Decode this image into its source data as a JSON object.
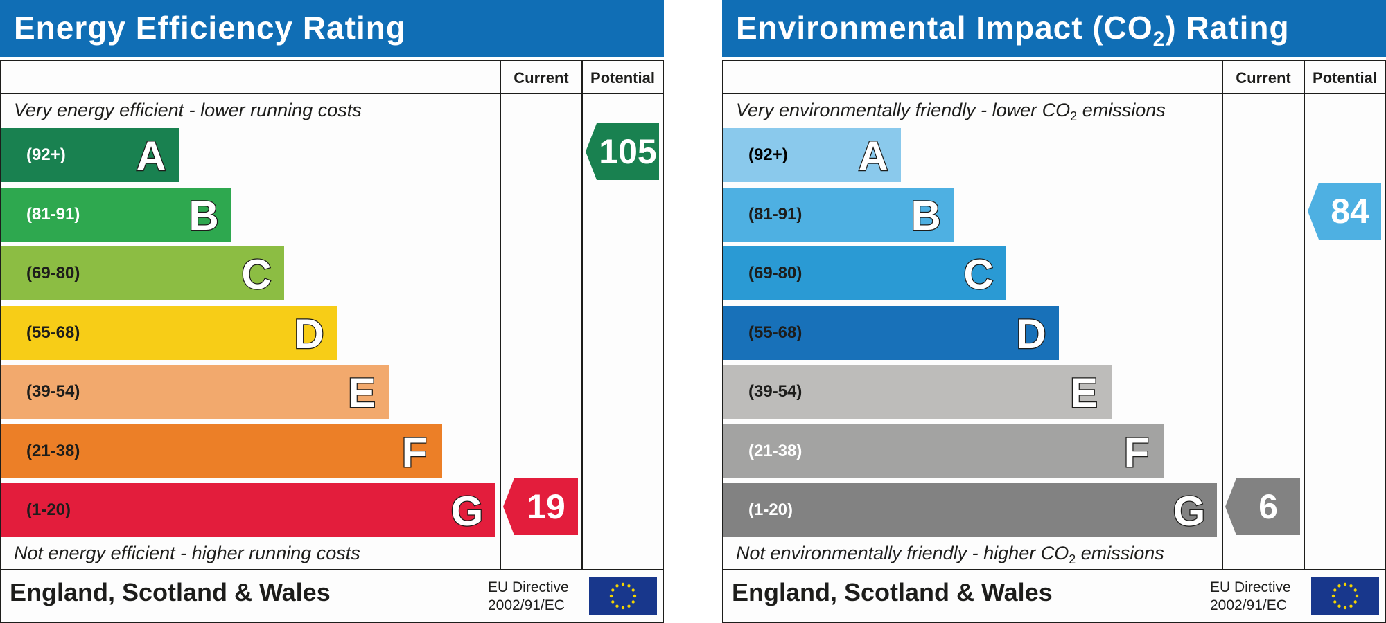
{
  "panels": [
    {
      "id": "eer",
      "title_main": "Energy Efficiency Rating",
      "title_sub": "",
      "title_tail": "",
      "col_current": "Current",
      "col_potential": "Potential",
      "top_caption": "Very energy efficient - lower running costs",
      "top_caption_sub": "",
      "top_caption_tail": "",
      "bottom_caption": "Not energy efficient - higher running costs",
      "bottom_caption_sub": "",
      "bottom_caption_tail": "",
      "region": "England, Scotland & Wales",
      "eu_line1": "EU Directive",
      "eu_line2": "2002/91/EC",
      "bands": [
        {
          "range": "(92+)",
          "letter": "A",
          "color": "#198150",
          "text_color": "#ffffff"
        },
        {
          "range": "(81-91)",
          "letter": "B",
          "color": "#2ea84f",
          "text_color": "#ffffff"
        },
        {
          "range": "(69-80)",
          "letter": "C",
          "color": "#8cbd43",
          "text_color": "#1d1d1b"
        },
        {
          "range": "(55-68)",
          "letter": "D",
          "color": "#f7cd17",
          "text_color": "#1d1d1b"
        },
        {
          "range": "(39-54)",
          "letter": "E",
          "color": "#f2a96d",
          "text_color": "#1d1d1b"
        },
        {
          "range": "(21-38)",
          "letter": "F",
          "color": "#ec7f27",
          "text_color": "#1d1d1b"
        },
        {
          "range": "(1-20)",
          "letter": "G",
          "color": "#e31d3c",
          "text_color": "#1d1d1b"
        }
      ],
      "current": {
        "value": 19,
        "band": "G",
        "color": "#e31d3c"
      },
      "potential": {
        "value": 105,
        "band": "A",
        "color": "#198150"
      }
    },
    {
      "id": "ei",
      "title_main": "Environmental Impact (CO",
      "title_sub": "2",
      "title_tail": ") Rating",
      "col_current": "Current",
      "col_potential": "Potential",
      "top_caption": "Very environmentally friendly - lower CO",
      "top_caption_sub": "2",
      "top_caption_tail": " emissions",
      "bottom_caption": "Not environmentally friendly - higher CO",
      "bottom_caption_sub": "2",
      "bottom_caption_tail": " emissions",
      "region": "England, Scotland & Wales",
      "eu_line1": "EU Directive",
      "eu_line2": "2002/91/EC",
      "bands": [
        {
          "range": "(92+)",
          "letter": "A",
          "color": "#8ac9ec",
          "text_color": "#000000"
        },
        {
          "range": "(81-91)",
          "letter": "B",
          "color": "#4eb0e2",
          "text_color": "#1d1d1b"
        },
        {
          "range": "(69-80)",
          "letter": "C",
          "color": "#2a9ad4",
          "text_color": "#1d1d1b"
        },
        {
          "range": "(55-68)",
          "letter": "D",
          "color": "#1871b9",
          "text_color": "#1d1d1b"
        },
        {
          "range": "(39-54)",
          "letter": "E",
          "color": "#bdbcba",
          "text_color": "#1d1d1b"
        },
        {
          "range": "(21-38)",
          "letter": "F",
          "color": "#a3a3a2",
          "text_color": "#ffffff"
        },
        {
          "range": "(1-20)",
          "letter": "G",
          "color": "#828282",
          "text_color": "#ffffff"
        }
      ],
      "current": {
        "value": 6,
        "band": "G",
        "color": "#828282"
      },
      "potential": {
        "value": 84,
        "band": "B",
        "color": "#4eb0e2"
      }
    }
  ],
  "chart_data": [
    {
      "type": "bar",
      "title": "Energy Efficiency Rating",
      "categories": [
        "A",
        "B",
        "C",
        "D",
        "E",
        "F",
        "G"
      ],
      "ranges": [
        "(92+)",
        "(81-91)",
        "(69-80)",
        "(55-68)",
        "(39-54)",
        "(21-38)",
        "(1-20)"
      ],
      "current": 19,
      "potential": 105
    },
    {
      "type": "bar",
      "title": "Environmental Impact (CO2) Rating",
      "categories": [
        "A",
        "B",
        "C",
        "D",
        "E",
        "F",
        "G"
      ],
      "ranges": [
        "(92+)",
        "(81-91)",
        "(69-80)",
        "(55-68)",
        "(39-54)",
        "(21-38)",
        "(1-20)"
      ],
      "current": 6,
      "potential": 84
    }
  ]
}
